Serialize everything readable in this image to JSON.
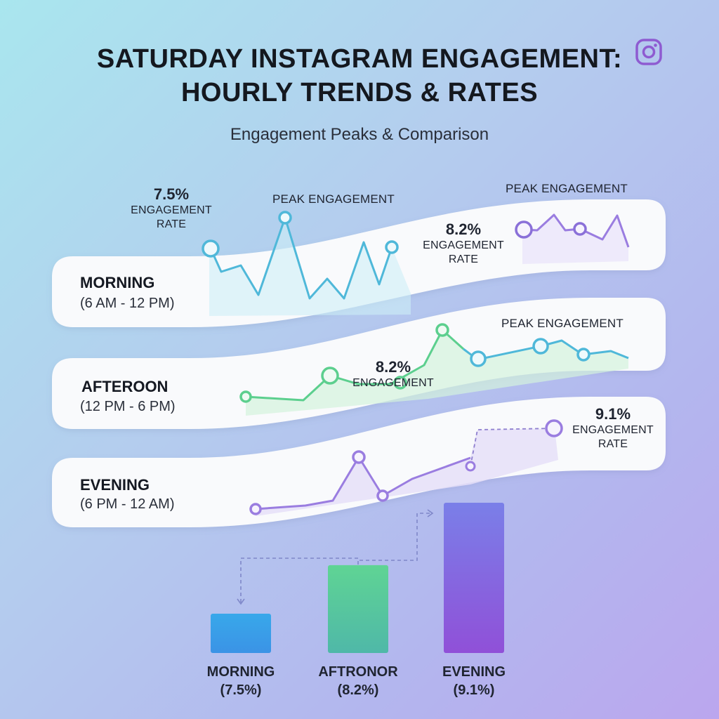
{
  "header": {
    "title_line1": "SATURDAY INSTAGRAM ENGAGEMENT:",
    "title_line2": "HOURLY TRENDS & RATES",
    "subtitle": "Engagement Peaks & Comparison",
    "brand_icon": "instagram-icon"
  },
  "bands": [
    {
      "name": "MORNING",
      "range": "(6 AM - 12 PM)",
      "color": "#4fb8d9"
    },
    {
      "name": "AFTEROON",
      "range": "(12 PM - 6 PM)",
      "color": "#5ccf8e"
    },
    {
      "name": "EVENING",
      "range": "(6 PM - 12 AM)",
      "color": "#9a7de0"
    }
  ],
  "annotations": {
    "morning_rate": "7.5%",
    "morning_rate_label_1": "ENGAGEMENT",
    "morning_rate_label_2": "RATE",
    "morning_peak": "PEAK ENGAGEMENT",
    "morning_right_rate": "8.2%",
    "morning_right_label_1": "ENGAGEMENT",
    "morning_right_label_2": "RATE",
    "morning_right_peak": "PEAK ENGAGEMENT",
    "afternoon_rate": "8.2%",
    "afternoon_rate_label": "ENGAGEMENT",
    "afternoon_peak": "PEAK ENGAGEMENT",
    "evening_rate": "9.1%",
    "evening_label_1": "ENGAGEMENT",
    "evening_label_2": "RATE"
  },
  "chart_data": {
    "type": "bar",
    "title": "",
    "categories": [
      "MORNING",
      "AFTRONOR",
      "EVENING"
    ],
    "category_sublabels": [
      "(7.5%)",
      "(8.2%)",
      "(9.1%)"
    ],
    "values": [
      7.5,
      8.2,
      9.1
    ],
    "unit": "%",
    "colors": [
      [
        "#38a8ea",
        "#3b93e6"
      ],
      [
        "#5fd494",
        "#4fb8a8"
      ],
      [
        "#7a7fe8",
        "#9050d8"
      ]
    ],
    "grid": false,
    "legend": "none"
  }
}
